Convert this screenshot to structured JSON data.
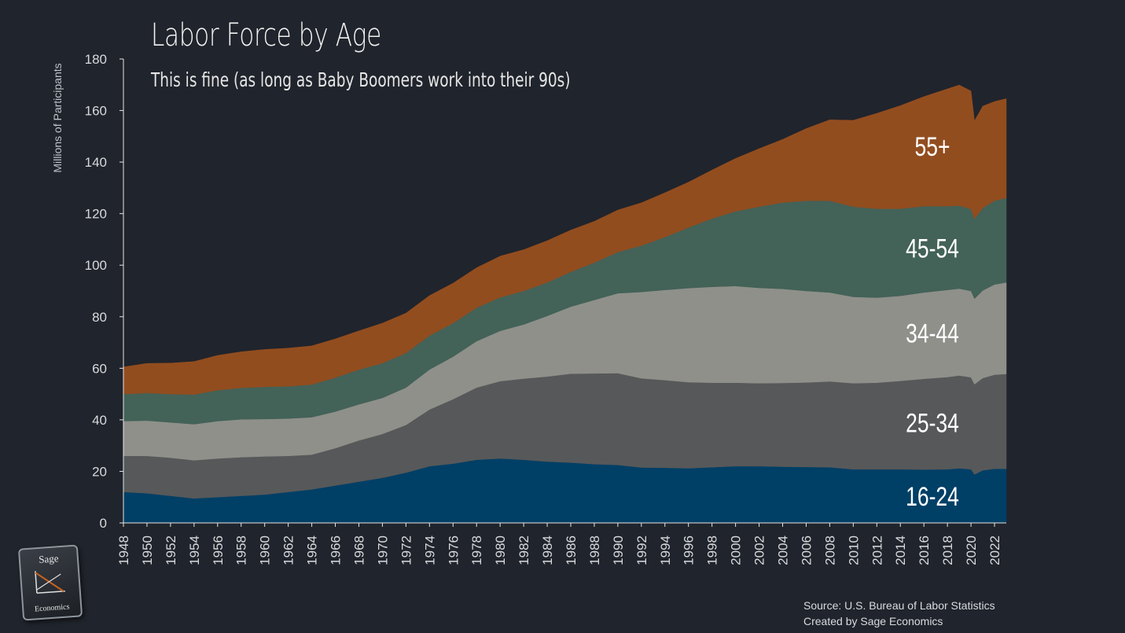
{
  "title": "Labor Force by Age",
  "subtitle": "This is fine (as long as Baby Boomers work into their 90s)",
  "ylabel": "Millions of Participants",
  "source_line1": "Source: U.S. Bureau of Labor Statistics",
  "source_line2": "Created by Sage Economics",
  "logo": {
    "top": "Sage",
    "bottom": "Economics"
  },
  "chart_data": {
    "type": "area",
    "stacked": true,
    "ylim": [
      0,
      180
    ],
    "yticks": [
      0,
      20,
      40,
      60,
      80,
      100,
      120,
      140,
      160,
      180
    ],
    "xlim": [
      1948,
      2023
    ],
    "xticks": [
      1948,
      1950,
      1952,
      1954,
      1956,
      1958,
      1960,
      1962,
      1964,
      1966,
      1968,
      1970,
      1972,
      1974,
      1976,
      1978,
      1980,
      1982,
      1984,
      1986,
      1988,
      1990,
      1992,
      1994,
      1996,
      1998,
      2000,
      2002,
      2004,
      2006,
      2008,
      2010,
      2012,
      2014,
      2016,
      2018,
      2020,
      2022
    ],
    "grid": false,
    "years": [
      1948,
      1950,
      1952,
      1954,
      1956,
      1958,
      1960,
      1962,
      1964,
      1966,
      1968,
      1970,
      1972,
      1974,
      1976,
      1978,
      1980,
      1982,
      1984,
      1986,
      1988,
      1990,
      1992,
      1994,
      1996,
      1998,
      2000,
      2002,
      2004,
      2006,
      2008,
      2010,
      2012,
      2014,
      2016,
      2018,
      2019,
      2020,
      2020.3,
      2021,
      2022,
      2023
    ],
    "series": [
      {
        "name": "16-24",
        "color": "#003f66",
        "values": [
          12,
          11.5,
          10.5,
          9.5,
          10,
          10.5,
          11,
          12,
          13,
          14.5,
          16,
          17.5,
          19.5,
          22,
          23,
          24.5,
          25,
          24.5,
          23.8,
          23.4,
          22.8,
          22.5,
          21.5,
          21.4,
          21.2,
          21.6,
          22,
          22,
          21.8,
          21.7,
          21.6,
          20.8,
          20.8,
          20.8,
          20.7,
          20.8,
          21.2,
          20.8,
          18.8,
          20.4,
          21,
          21
        ]
      },
      {
        "name": "25-34",
        "color": "#575859",
        "values": [
          14,
          14.5,
          14.8,
          14.8,
          15,
          15,
          14.8,
          14,
          13.5,
          14.5,
          16,
          17,
          18.5,
          22,
          25,
          28,
          30,
          31.5,
          33,
          34.5,
          35.2,
          35.6,
          34.6,
          34,
          33.4,
          32.8,
          32.4,
          32.2,
          32.5,
          32.8,
          33.3,
          33.4,
          33.6,
          34.3,
          35.2,
          35.8,
          36,
          35.7,
          35,
          35.8,
          36.5,
          36.8
        ]
      },
      {
        "name": "34-44",
        "color": "#8f908a",
        "values": [
          13.5,
          13.7,
          13.7,
          14,
          14.5,
          14.7,
          14.5,
          14.5,
          14.5,
          14.2,
          14,
          14,
          14.5,
          15.5,
          16.5,
          18,
          19.5,
          21,
          23.5,
          26,
          28.5,
          31,
          33.5,
          35,
          36.5,
          37.2,
          37.5,
          37,
          36.5,
          35.5,
          34.5,
          33.5,
          33,
          33,
          33.5,
          33.8,
          33.7,
          33.5,
          33.2,
          34,
          35,
          35.5
        ]
      },
      {
        "name": "45-54",
        "color": "#436258",
        "values": [
          10.5,
          10.7,
          11,
          11.5,
          12,
          12.2,
          12.5,
          12.5,
          12.7,
          13.2,
          13.5,
          13.5,
          13.4,
          13.2,
          13,
          13,
          13,
          13,
          13,
          13.5,
          14.5,
          16,
          18,
          20.5,
          23.5,
          26.5,
          29,
          31.5,
          33.5,
          35,
          35.6,
          35,
          34.5,
          33.8,
          33.5,
          32.5,
          32.2,
          31.8,
          31,
          32,
          32.5,
          32.8
        ]
      },
      {
        "name": "55+",
        "color": "#924d1f",
        "values": [
          10.5,
          11.5,
          12,
          12.8,
          13.5,
          14,
          14.5,
          14.8,
          15,
          15,
          15,
          15.5,
          15.5,
          15.5,
          15.5,
          15.5,
          16,
          16,
          16.2,
          16.2,
          16,
          16.3,
          16.6,
          17.2,
          17.6,
          18.8,
          20.5,
          22.5,
          24.5,
          28,
          31.4,
          33.5,
          37,
          40,
          42.5,
          45.5,
          46.8,
          45.8,
          38,
          39.5,
          38.5,
          38.5
        ]
      }
    ]
  }
}
